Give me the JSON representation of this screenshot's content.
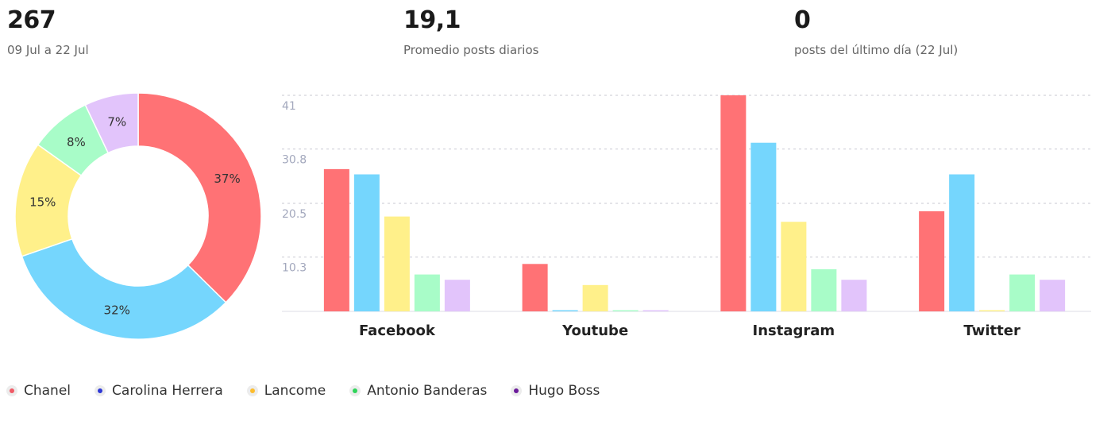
{
  "stats": [
    {
      "value": "267",
      "label": "09 Jul a 22 Jul"
    },
    {
      "value": "19,1",
      "label": "Promedio posts diarios"
    },
    {
      "value": "0",
      "label": "posts del último día (22 Jul)"
    }
  ],
  "chart_data": [
    {
      "type": "pie",
      "variant": "donut",
      "labels": [
        "Chanel",
        "Carolina Herrera",
        "Lancome",
        "Antonio Banderas",
        "Hugo Boss"
      ],
      "values": [
        37,
        32,
        15,
        8,
        7
      ],
      "value_labels": [
        "37%",
        "32%",
        "15%",
        "8%",
        "7%"
      ],
      "colors": [
        "#ff7275",
        "#75d6fd",
        "#fff08a",
        "#a8fcc8",
        "#e2c4fb"
      ]
    },
    {
      "type": "bar",
      "categories": [
        "Facebook",
        "Youtube",
        "Instagram",
        "Twitter"
      ],
      "series": [
        {
          "name": "Chanel",
          "values": [
            27,
            9,
            41,
            19
          ],
          "color": "#ff7275"
        },
        {
          "name": "Carolina Herrera",
          "values": [
            26,
            0.2,
            32,
            26
          ],
          "color": "#75d6fd"
        },
        {
          "name": "Lancome",
          "values": [
            18,
            5,
            17,
            0.2
          ],
          "color": "#fff08a"
        },
        {
          "name": "Antonio Banderas",
          "values": [
            7,
            0.2,
            8,
            7
          ],
          "color": "#a8fcc8"
        },
        {
          "name": "Hugo Boss",
          "values": [
            6,
            0.2,
            6,
            6
          ],
          "color": "#e2c4fb"
        }
      ],
      "yticks": [
        10.3,
        20.5,
        30.8,
        41
      ],
      "ytick_labels": [
        "10.3",
        "20.5",
        "30.8",
        "41"
      ],
      "ylim": [
        0,
        41
      ],
      "grid": true
    }
  ],
  "legend": [
    {
      "label": "Chanel",
      "color": "#f05a66"
    },
    {
      "label": "Carolina Herrera",
      "color": "#2f39d6"
    },
    {
      "label": "Lancome",
      "color": "#fdbd2e"
    },
    {
      "label": "Antonio Banderas",
      "color": "#2fd45a"
    },
    {
      "label": "Hugo Boss",
      "color": "#6b1b9a"
    }
  ]
}
